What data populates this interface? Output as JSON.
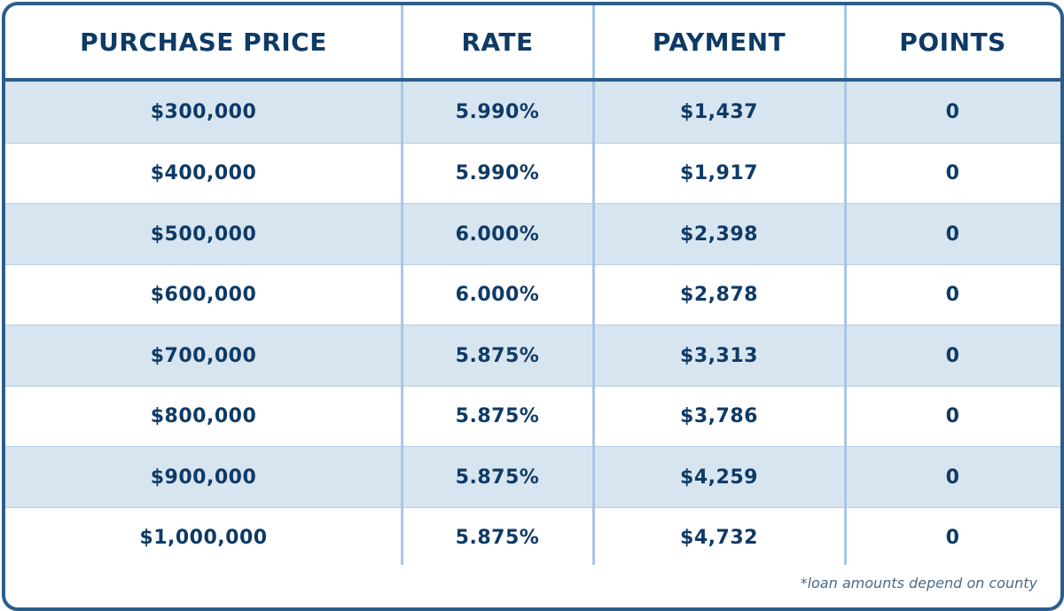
{
  "table": {
    "header": [
      "PURCHASE PRICE",
      "RATE",
      "PAYMENT",
      "POINTS"
    ],
    "rows": [
      [
        "$300,000",
        "5.990%",
        "$1,437",
        "0"
      ],
      [
        "$400,000",
        "5.990%",
        "$1,917",
        "0"
      ],
      [
        "$500,000",
        "6.000%",
        "$2,398",
        "0"
      ],
      [
        "$600,000",
        "6.000%",
        "$2,878",
        "0"
      ],
      [
        "$700,000",
        "5.875%",
        "$3,313",
        "0"
      ],
      [
        "$800,000",
        "5.875%",
        "$3,786",
        "0"
      ],
      [
        "$900,000",
        "5.875%",
        "$4,259",
        "0"
      ],
      [
        "$1,000,000",
        "5.875%",
        "$4,732",
        "0"
      ]
    ],
    "footnote": "*loan amounts depend on county"
  }
}
